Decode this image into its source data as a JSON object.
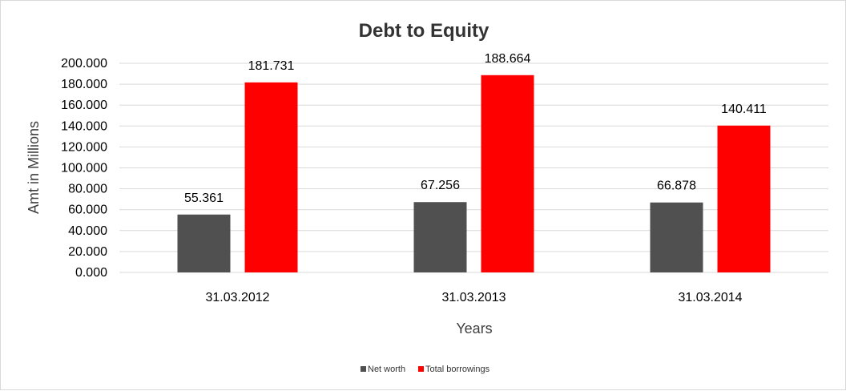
{
  "chart_data": {
    "type": "bar",
    "title": "Debt to Equity",
    "xlabel": "Years",
    "ylabel": "Amt in Millions",
    "categories": [
      "31.03.2012",
      "31.03.2013",
      "31.03.2014"
    ],
    "series": [
      {
        "name": "Net worth",
        "values": [
          55.361,
          67.256,
          66.878
        ],
        "color": "#505050",
        "labels": [
          "55.361",
          "67.256",
          "66.878"
        ]
      },
      {
        "name": "Total borrowings",
        "values": [
          181.731,
          188.664,
          140.411
        ],
        "color": "#ff0000",
        "labels": [
          "181.731",
          "188.664",
          "140.411"
        ]
      }
    ],
    "ylim": [
      0,
      200
    ],
    "yticks": [
      0,
      20,
      40,
      60,
      80,
      100,
      120,
      140,
      160,
      180,
      200
    ],
    "ytick_labels": [
      "0.000",
      "20.000",
      "40.000",
      "60.000",
      "80.000",
      "100.000",
      "120.000",
      "140.000",
      "160.000",
      "180.000",
      "200.000"
    ],
    "grid": true,
    "legend_position": "bottom"
  }
}
